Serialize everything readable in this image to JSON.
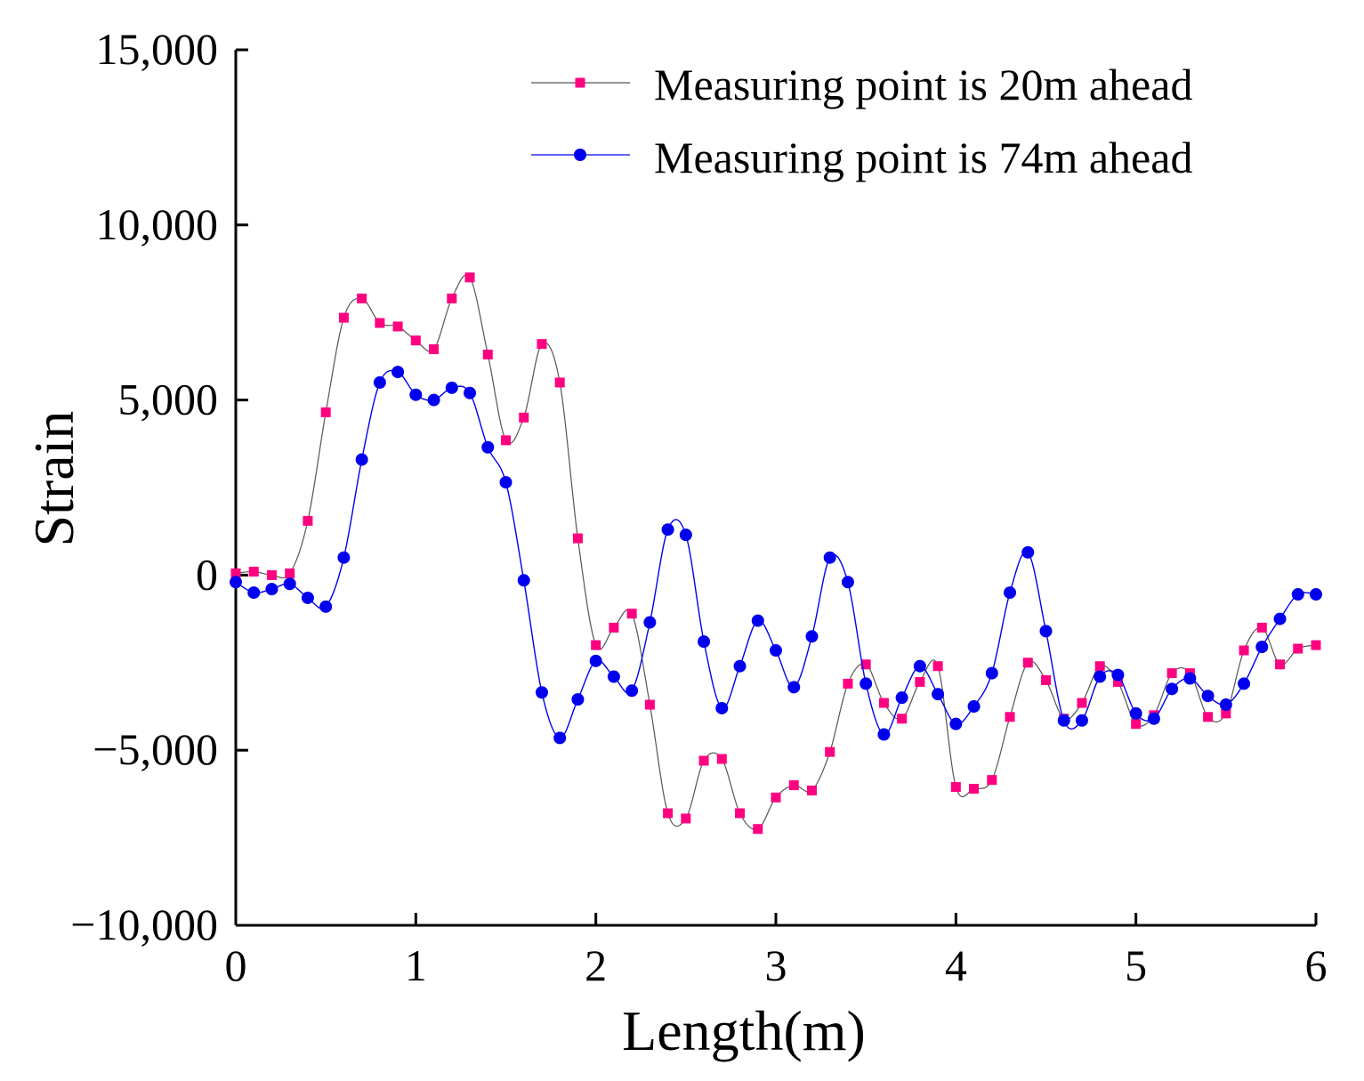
{
  "chart_data": {
    "type": "line",
    "title": "",
    "xlabel": "Length(m)",
    "ylabel": "Strain",
    "xlim": [
      0,
      6
    ],
    "ylim": [
      -10000,
      15000
    ],
    "xticks": [
      0,
      1,
      2,
      3,
      4,
      5,
      6
    ],
    "xtick_labels": [
      "0",
      "1",
      "2",
      "3",
      "4",
      "5",
      "6"
    ],
    "yticks": [
      15000,
      10000,
      5000,
      0,
      -5000,
      -10000
    ],
    "ytick_labels": [
      "15,000",
      "10,000",
      "5,000",
      "0",
      "−5,000",
      "−10,000"
    ],
    "grid": false,
    "legend_position": "top-right",
    "series": [
      {
        "name": "Measuring point is 20m ahead",
        "color": "#ff0080",
        "line_color": "#555555",
        "marker": "square",
        "x": [
          0.0,
          0.1,
          0.2,
          0.3,
          0.4,
          0.5,
          0.6,
          0.7,
          0.8,
          0.9,
          1.0,
          1.1,
          1.2,
          1.3,
          1.4,
          1.5,
          1.6,
          1.7,
          1.8,
          1.9,
          2.0,
          2.1,
          2.2,
          2.3,
          2.4,
          2.5,
          2.6,
          2.7,
          2.8,
          2.9,
          3.0,
          3.1,
          3.2,
          3.3,
          3.4,
          3.5,
          3.6,
          3.7,
          3.8,
          3.9,
          4.0,
          4.1,
          4.2,
          4.3,
          4.4,
          4.5,
          4.6,
          4.7,
          4.8,
          4.9,
          5.0,
          5.1,
          5.2,
          5.3,
          5.4,
          5.5,
          5.6,
          5.7,
          5.8,
          5.9,
          6.0
        ],
        "values": [
          50,
          100,
          0,
          50,
          1550,
          4650,
          7350,
          7900,
          7200,
          7100,
          6700,
          6450,
          7900,
          8500,
          6300,
          3850,
          4500,
          6600,
          5500,
          1050,
          -2000,
          -1500,
          -1100,
          -3700,
          -6800,
          -6950,
          -5300,
          -5250,
          -6800,
          -7250,
          -6350,
          -6000,
          -6150,
          -5050,
          -3100,
          -2550,
          -3650,
          -4100,
          -3050,
          -2600,
          -6050,
          -6100,
          -5850,
          -4050,
          -2500,
          -3000,
          -4100,
          -3650,
          -2600,
          -3050,
          -4250,
          -4000,
          -2800,
          -2800,
          -4050,
          -3950,
          -2150,
          -1500,
          -2550,
          -2100,
          -2000
        ]
      },
      {
        "name": "Measuring point is 74m ahead",
        "color": "#0000ee",
        "line_color": "#0000ee",
        "marker": "circle",
        "x": [
          0.0,
          0.1,
          0.2,
          0.3,
          0.4,
          0.5,
          0.6,
          0.7,
          0.8,
          0.9,
          1.0,
          1.1,
          1.2,
          1.3,
          1.4,
          1.5,
          1.6,
          1.7,
          1.8,
          1.9,
          2.0,
          2.1,
          2.2,
          2.3,
          2.4,
          2.5,
          2.6,
          2.7,
          2.8,
          2.9,
          3.0,
          3.1,
          3.2,
          3.3,
          3.4,
          3.5,
          3.6,
          3.7,
          3.8,
          3.9,
          4.0,
          4.1,
          4.2,
          4.3,
          4.4,
          4.5,
          4.6,
          4.7,
          4.8,
          4.9,
          5.0,
          5.1,
          5.2,
          5.3,
          5.4,
          5.5,
          5.6,
          5.7,
          5.8,
          5.9,
          6.0
        ],
        "values": [
          -200,
          -500,
          -400,
          -250,
          -650,
          -900,
          500,
          3300,
          5500,
          5800,
          5150,
          5000,
          5350,
          5200,
          3650,
          2650,
          -150,
          -3350,
          -4650,
          -3550,
          -2450,
          -2900,
          -3300,
          -1350,
          1300,
          1150,
          -1900,
          -3800,
          -2600,
          -1300,
          -2150,
          -3200,
          -1750,
          500,
          -200,
          -3100,
          -4550,
          -3500,
          -2600,
          -3400,
          -4250,
          -3750,
          -2800,
          -500,
          650,
          -1600,
          -4150,
          -4150,
          -2900,
          -2850,
          -3950,
          -4100,
          -3250,
          -2950,
          -3450,
          -3700,
          -3100,
          -2050,
          -1250,
          -550,
          -550
        ]
      }
    ]
  }
}
